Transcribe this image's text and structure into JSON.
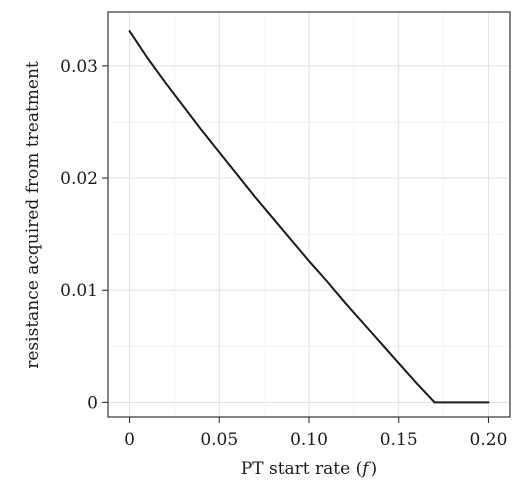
{
  "chart_data": {
    "type": "line",
    "title": "",
    "xlabel_prefix": "PT start rate (",
    "xlabel_symbol": "f",
    "xlabel_suffix": ")",
    "ylabel": "resistance acquired from treatment",
    "xlim": [
      -0.012,
      0.212
    ],
    "ylim": [
      -0.0013,
      0.0348
    ],
    "x_ticks": [
      0,
      0.05,
      0.1,
      0.15,
      0.2
    ],
    "x_tick_labels": [
      "0",
      "0.05",
      "0.10",
      "0.15",
      "0.20"
    ],
    "y_ticks": [
      0,
      0.01,
      0.02,
      0.03
    ],
    "y_tick_labels": [
      "0",
      "0.01",
      "0.02",
      "0.03"
    ],
    "grid": true,
    "series": [
      {
        "x": [
          0,
          0.01,
          0.02,
          0.03,
          0.04,
          0.05,
          0.06,
          0.07,
          0.08,
          0.09,
          0.1,
          0.11,
          0.12,
          0.13,
          0.14,
          0.15,
          0.16,
          0.17,
          0.18,
          0.19,
          0.2
        ],
        "values": [
          0.0331,
          0.0307,
          0.0285,
          0.0264,
          0.0243,
          0.0223,
          0.0203,
          0.0183,
          0.0164,
          0.0145,
          0.0126,
          0.0108,
          0.0089,
          0.0071,
          0.0053,
          0.0035,
          0.0017,
          0.0,
          0.0,
          0.0,
          0.0
        ],
        "color": "#1a1a1a"
      }
    ]
  }
}
